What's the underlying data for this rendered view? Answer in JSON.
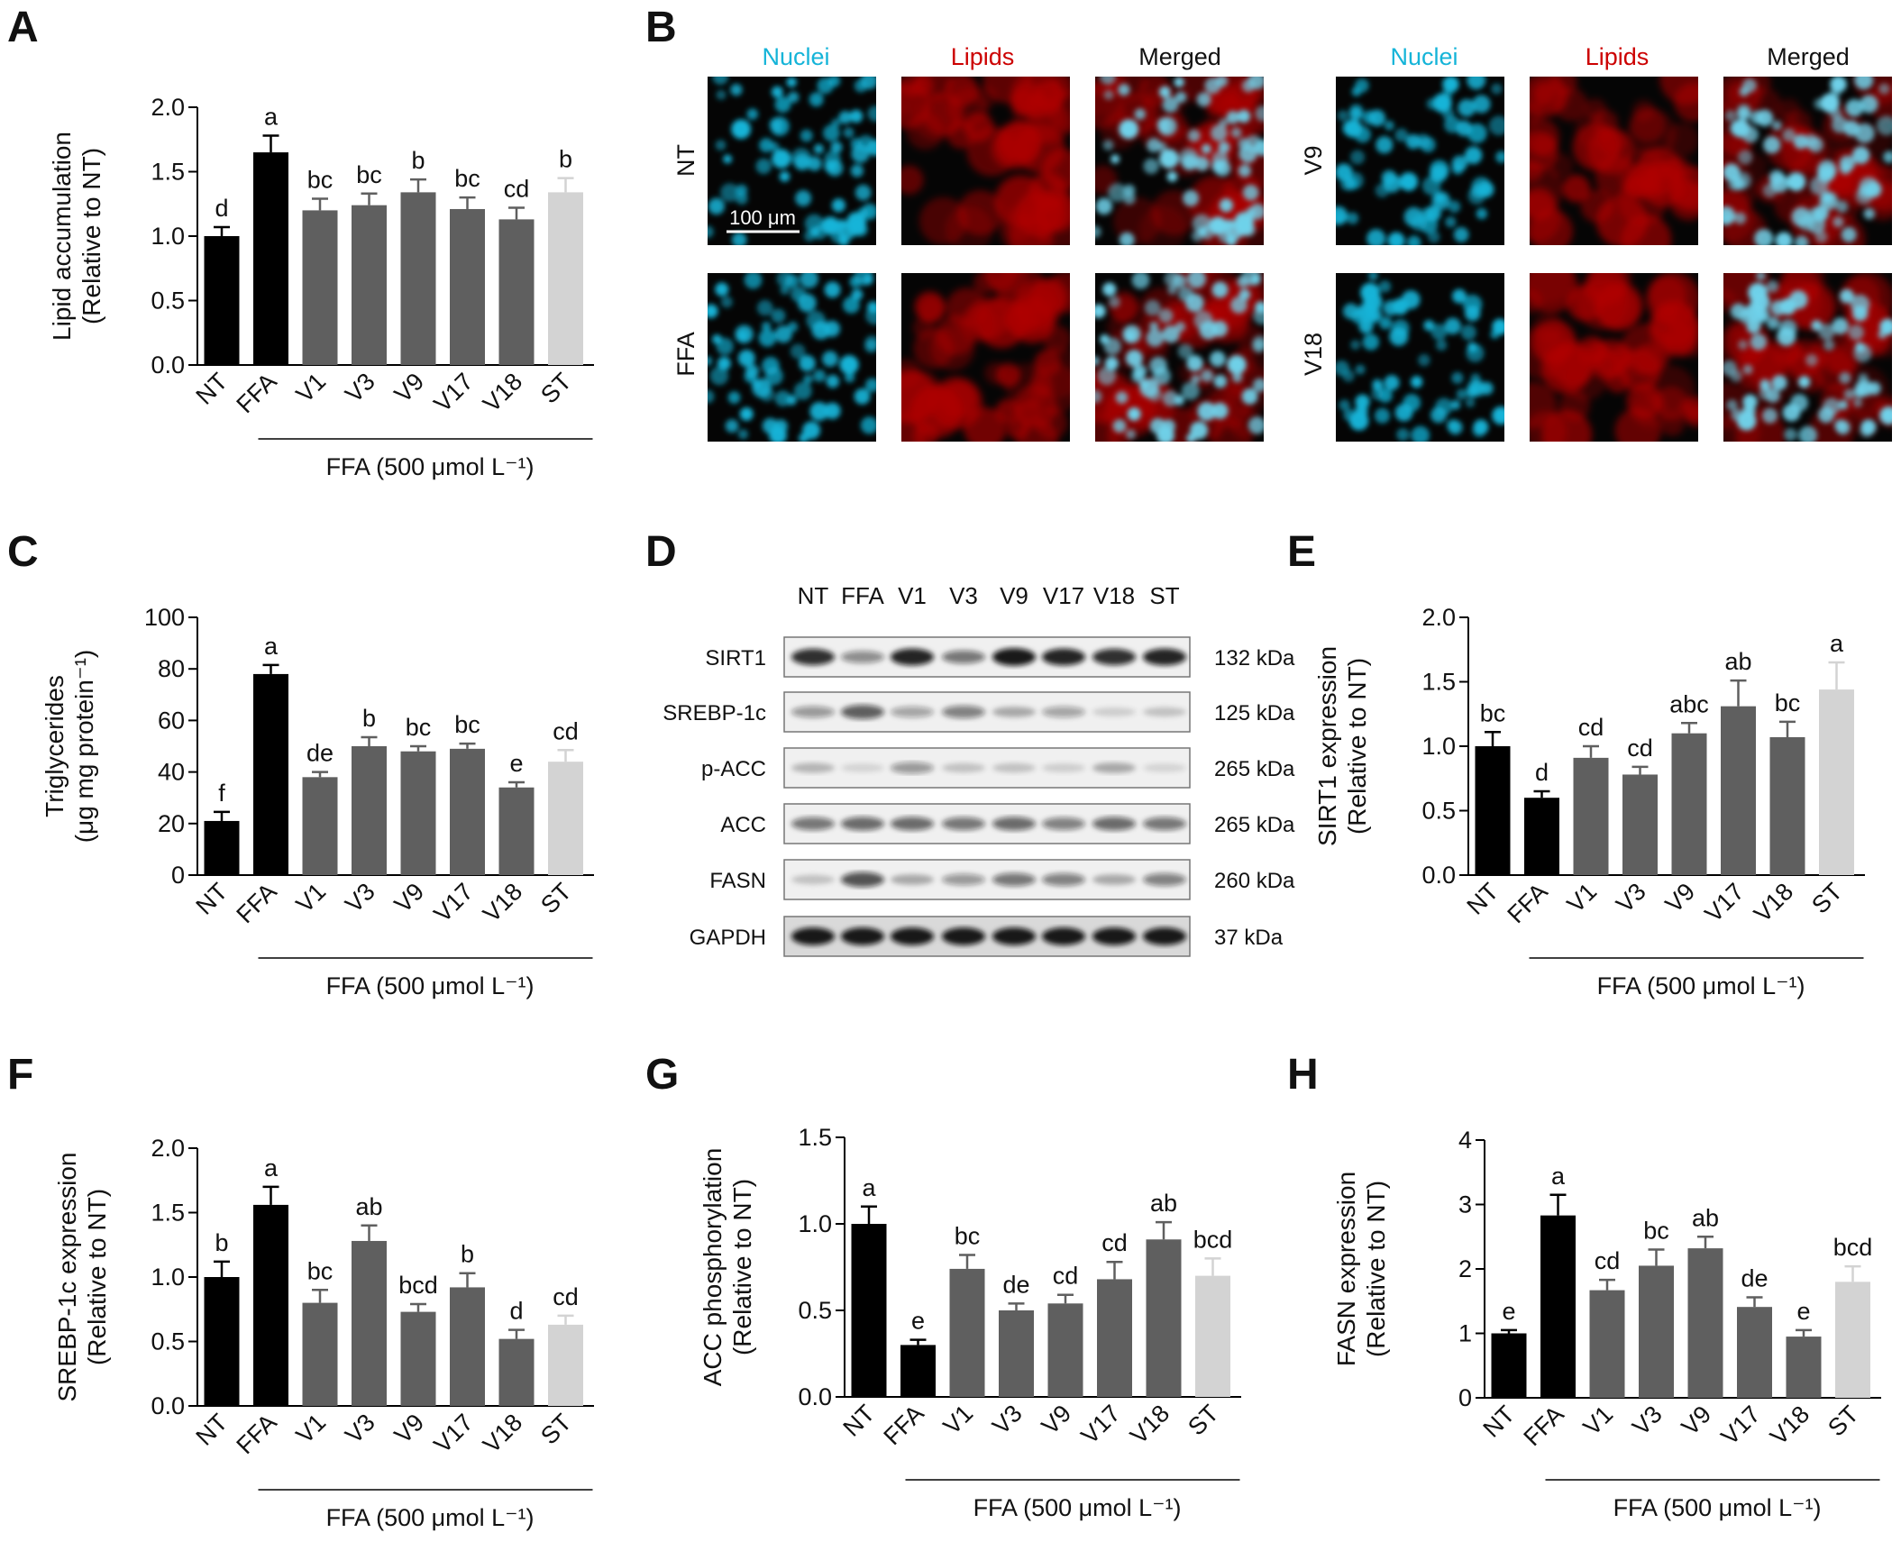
{
  "colors": {
    "nt": "#000000",
    "ffa": "#000000",
    "dark": "#5f5f5f",
    "st": "#d3d3d3",
    "nuclei": "#15b4d8",
    "lipids": "#cc0000"
  },
  "categories": [
    "NT",
    "FFA",
    "V1",
    "V3",
    "V9",
    "V17",
    "V18",
    "ST"
  ],
  "bar_colors": [
    "nt",
    "ffa",
    "dark",
    "dark",
    "dark",
    "dark",
    "dark",
    "st"
  ],
  "panel_labels": {
    "A": "A",
    "B": "B",
    "C": "C",
    "D": "D",
    "E": "E",
    "F": "F",
    "G": "G",
    "H": "H"
  },
  "micrograph": {
    "headers": [
      "Nuclei",
      "Lipids",
      "Merged",
      "Nuclei",
      "Lipids",
      "Merged"
    ],
    "rows": [
      "NT",
      "FFA",
      "V9",
      "V18"
    ],
    "scale_bar": "100 μm"
  },
  "western_blot": {
    "lanes": [
      "NT",
      "FFA",
      "V1",
      "V3",
      "V9",
      "V17",
      "V18",
      "ST"
    ],
    "proteins": [
      {
        "name": "SIRT1",
        "kda": "132 kDa",
        "intensity": [
          0.85,
          0.45,
          0.9,
          0.55,
          0.95,
          0.9,
          0.85,
          0.9
        ]
      },
      {
        "name": "SREBP-1c",
        "kda": "125 kDa",
        "intensity": [
          0.4,
          0.65,
          0.35,
          0.5,
          0.3,
          0.35,
          0.15,
          0.2
        ]
      },
      {
        "name": "p-ACC",
        "kda": "265 kDa",
        "intensity": [
          0.25,
          0.12,
          0.4,
          0.2,
          0.2,
          0.15,
          0.3,
          0.12
        ]
      },
      {
        "name": "ACC",
        "kda": "265 kDa",
        "intensity": [
          0.55,
          0.6,
          0.6,
          0.55,
          0.6,
          0.5,
          0.6,
          0.55
        ]
      },
      {
        "name": "FASN",
        "kda": "260 kDa",
        "intensity": [
          0.2,
          0.7,
          0.3,
          0.4,
          0.55,
          0.5,
          0.3,
          0.5
        ]
      },
      {
        "name": "GAPDH",
        "kda": "37 kDa",
        "intensity": [
          0.95,
          0.95,
          0.95,
          0.95,
          0.95,
          0.95,
          0.95,
          0.95
        ]
      }
    ]
  },
  "chart_data": [
    {
      "id": "A",
      "type": "bar",
      "categories": [
        "NT",
        "FFA",
        "V1",
        "V3",
        "V9",
        "V17",
        "V18",
        "ST"
      ],
      "values": [
        1.0,
        1.65,
        1.2,
        1.24,
        1.34,
        1.21,
        1.13,
        1.34
      ],
      "errors": [
        0.07,
        0.13,
        0.09,
        0.09,
        0.1,
        0.09,
        0.09,
        0.11
      ],
      "significance": [
        "d",
        "a",
        "bc",
        "bc",
        "b",
        "bc",
        "cd",
        "b"
      ],
      "ylabel": [
        "Lipid accumulation",
        "(Relative to NT)"
      ],
      "ylim": [
        0,
        2.0
      ],
      "yticks": [
        "0.0",
        "0.5",
        "1.0",
        "1.5",
        "2.0"
      ],
      "treatment_label": "FFA (500 μmol L⁻¹)"
    },
    {
      "id": "C",
      "type": "bar",
      "categories": [
        "NT",
        "FFA",
        "V1",
        "V3",
        "V9",
        "V17",
        "V18",
        "ST"
      ],
      "values": [
        21,
        78,
        38,
        50,
        48,
        49,
        34,
        44
      ],
      "errors": [
        3.5,
        3.5,
        2,
        3.5,
        2,
        2,
        2,
        4.5
      ],
      "significance": [
        "f",
        "a",
        "de",
        "b",
        "bc",
        "bc",
        "e",
        "cd"
      ],
      "ylabel": [
        "Triglycerides",
        "(μg mg protein⁻¹)"
      ],
      "ylim": [
        0,
        100
      ],
      "yticks": [
        "0",
        "20",
        "40",
        "60",
        "80",
        "100"
      ],
      "treatment_label": "FFA (500 μmol L⁻¹)"
    },
    {
      "id": "E",
      "type": "bar",
      "categories": [
        "NT",
        "FFA",
        "V1",
        "V3",
        "V9",
        "V17",
        "V18",
        "ST"
      ],
      "values": [
        1.0,
        0.6,
        0.91,
        0.78,
        1.1,
        1.31,
        1.07,
        1.44
      ],
      "errors": [
        0.11,
        0.05,
        0.09,
        0.06,
        0.08,
        0.2,
        0.12,
        0.21
      ],
      "significance": [
        "bc",
        "d",
        "cd",
        "cd",
        "abc",
        "ab",
        "bc",
        "a"
      ],
      "ylabel": [
        "SIRT1 expression",
        "(Relative to NT)"
      ],
      "ylim": [
        0,
        2.0
      ],
      "yticks": [
        "0.0",
        "0.5",
        "1.0",
        "1.5",
        "2.0"
      ],
      "treatment_label": "FFA (500 μmol L⁻¹)"
    },
    {
      "id": "F",
      "type": "bar",
      "categories": [
        "NT",
        "FFA",
        "V1",
        "V3",
        "V9",
        "V17",
        "V18",
        "ST"
      ],
      "values": [
        1.0,
        1.56,
        0.8,
        1.28,
        0.73,
        0.92,
        0.52,
        0.63
      ],
      "errors": [
        0.12,
        0.14,
        0.1,
        0.12,
        0.06,
        0.11,
        0.07,
        0.07
      ],
      "significance": [
        "b",
        "a",
        "bc",
        "ab",
        "bcd",
        "b",
        "d",
        "cd"
      ],
      "ylabel": [
        "SREBP-1c expression",
        "(Relative to NT)"
      ],
      "ylim": [
        0,
        2.0
      ],
      "yticks": [
        "0.0",
        "0.5",
        "1.0",
        "1.5",
        "2.0"
      ],
      "treatment_label": "FFA (500 μmol L⁻¹)"
    },
    {
      "id": "G",
      "type": "bar",
      "categories": [
        "NT",
        "FFA",
        "V1",
        "V3",
        "V9",
        "V17",
        "V18",
        "ST"
      ],
      "values": [
        1.0,
        0.3,
        0.74,
        0.5,
        0.54,
        0.68,
        0.91,
        0.7
      ],
      "errors": [
        0.1,
        0.03,
        0.08,
        0.04,
        0.05,
        0.1,
        0.1,
        0.1
      ],
      "significance": [
        "a",
        "e",
        "bc",
        "de",
        "cd",
        "cd",
        "ab",
        "bcd"
      ],
      "ylabel": [
        "ACC phosphorylation",
        "(Relative to NT)"
      ],
      "ylim": [
        0,
        1.5
      ],
      "yticks": [
        "0.0",
        "0.5",
        "1.0",
        "1.5"
      ],
      "treatment_label": "FFA (500 μmol L⁻¹)"
    },
    {
      "id": "H",
      "type": "bar",
      "categories": [
        "NT",
        "FFA",
        "V1",
        "V3",
        "V9",
        "V17",
        "V18",
        "ST"
      ],
      "values": [
        1.0,
        2.83,
        1.67,
        2.05,
        2.32,
        1.41,
        0.95,
        1.8
      ],
      "errors": [
        0.05,
        0.32,
        0.16,
        0.25,
        0.18,
        0.15,
        0.1,
        0.24
      ],
      "significance": [
        "e",
        "a",
        "cd",
        "bc",
        "ab",
        "de",
        "e",
        "bcd"
      ],
      "ylabel": [
        "FASN expression",
        "(Relative to NT)"
      ],
      "ylim": [
        0,
        4
      ],
      "yticks": [
        "0",
        "1",
        "2",
        "3",
        "4"
      ],
      "treatment_label": "FFA (500 μmol L⁻¹)"
    }
  ]
}
